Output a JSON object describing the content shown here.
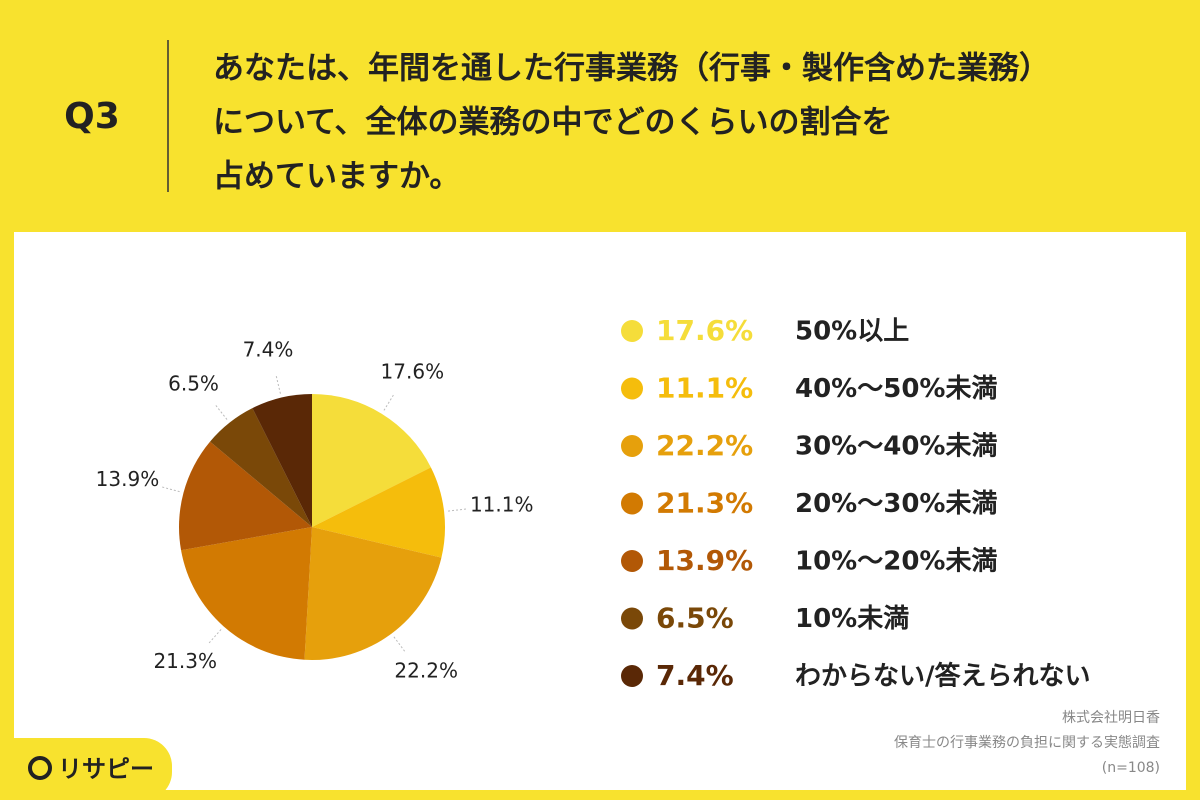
{
  "chart_data": {
    "type": "pie",
    "question": "Q3",
    "title_lines": [
      "あなたは、年間を通した行事業務（行事・製作含めた業務）",
      "について、全体の業務の中でどのくらいの割合を",
      "占めていますか。"
    ],
    "categories": [
      "50%以上",
      "40%〜50%未満",
      "30%〜40%未満",
      "20%〜30%未満",
      "10%〜20%未満",
      "10%未満",
      "わからない/答えられない"
    ],
    "values": [
      17.6,
      11.1,
      22.2,
      21.3,
      13.9,
      6.5,
      7.4
    ],
    "value_labels": [
      "17.6%",
      "11.1%",
      "22.2%",
      "21.3%",
      "13.9%",
      "6.5%",
      "7.4%"
    ],
    "colors": [
      "#f5dd3a",
      "#f5bd0c",
      "#e6a00c",
      "#d27a02",
      "#b25806",
      "#7a4808",
      "#5a2806"
    ],
    "source_lines": [
      "株式会社明日香",
      "保育士の行事業務の負担に関する実態調査",
      "(n=108)"
    ],
    "brand": "リサピー"
  }
}
